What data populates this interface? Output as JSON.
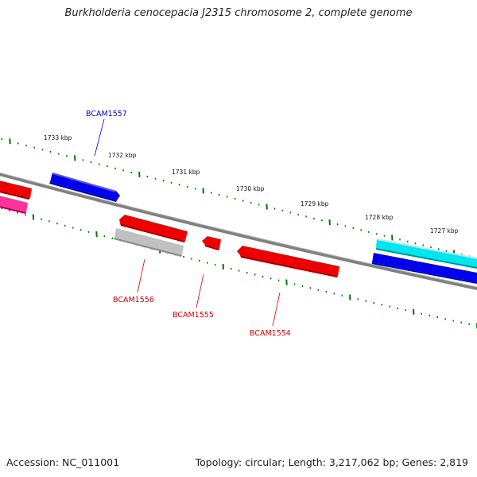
{
  "title": "Burkholderia cenocepacia J2315 chromosome 2, complete genome",
  "footer": {
    "accession": "Accession: NC_011001",
    "stats": "Topology: circular; Length: 3,217,062 bp; Genes: 2,819"
  },
  "kbp_ticks": [
    "1733 kbp",
    "1732 kbp",
    "1731 kbp",
    "1730 kbp",
    "1729 kbp",
    "1728 kbp",
    "1727 kbp"
  ],
  "gene_labels": {
    "bcam1557": "BCAM1557",
    "bcam1556": "BCAM1556",
    "bcam1555": "BCAM1555",
    "bcam1554": "BCAM1554"
  },
  "colors": {
    "backbone": "#808080",
    "forward_gene": "#0000ee",
    "reverse_gene": "#ee0000",
    "pseudo_gene": "#b8b8b8",
    "rna_feature": "#00e5ee",
    "misc_feature": "#ff3399",
    "tick": "#007700",
    "label_forward": "#0000cc",
    "label_reverse": "#cc0000"
  }
}
